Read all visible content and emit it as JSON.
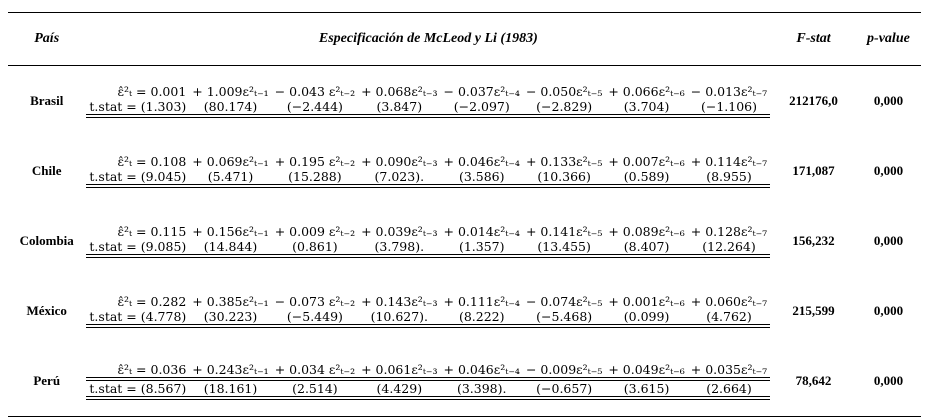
{
  "table": {
    "header": [
      "País",
      "Especificación de McLeod y Li (1983)",
      "F-stat",
      "p-value"
    ],
    "rows": [
      {
        "country": "Brasil",
        "equation": [
          "ε̂²ₜ = 0.001",
          "+ 1.009ε²ₜ₋₁",
          "− 0.043 ε²ₜ₋₂",
          "+ 0.068ε²ₜ₋₃",
          "− 0.037ε²ₜ₋₄",
          "− 0.050ε²ₜ₋₅",
          "+ 0.066ε²ₜ₋₆",
          "− 0.013ε²ₜ₋₇"
        ],
        "tstat": [
          "t.stat = (1.303)",
          "(80.174)",
          "(−2.444)",
          "(3.847)",
          "(−2.097)",
          "(−2.829)",
          "(3.704)",
          "(−1.106)"
        ],
        "fstat": "212176,0",
        "pvalue": "0,000"
      },
      {
        "country": "Chile",
        "equation": [
          "ε̂²ₜ = 0.108",
          "+ 0.069ε²ₜ₋₁",
          "+ 0.195 ε²ₜ₋₂",
          "+ 0.090ε²ₜ₋₃",
          "+ 0.046ε²ₜ₋₄",
          "+ 0.133ε²ₜ₋₅",
          "+ 0.007ε²ₜ₋₆",
          "+ 0.114ε²ₜ₋₇"
        ],
        "tstat": [
          "t.stat = (9.045)",
          "(5.471)",
          "(15.288)",
          "(7.023).",
          "(3.586)",
          "(10.366)",
          "(0.589)",
          "(8.955)"
        ],
        "fstat": "171,087",
        "pvalue": "0,000"
      },
      {
        "country": "Colombia",
        "equation": [
          "ε̂²ₜ = 0.115",
          "+ 0.156ε²ₜ₋₁",
          "+ 0.009 ε²ₜ₋₂",
          "+ 0.039ε²ₜ₋₃",
          "+ 0.014ε²ₜ₋₄",
          "+ 0.141ε²ₜ₋₅",
          "+ 0.089ε²ₜ₋₆",
          "+ 0.128ε²ₜ₋₇"
        ],
        "tstat": [
          "t.stat = (9.085)",
          "(14.844)",
          "(0.861)",
          "(3.798).",
          "(1.357)",
          "(13.455)",
          "(8.407)",
          "(12.264)"
        ],
        "fstat": "156,232",
        "pvalue": "0,000"
      },
      {
        "country": "México",
        "equation": [
          "ε̂²ₜ = 0.282",
          "+ 0.385ε²ₜ₋₁",
          "− 0.073 ε²ₜ₋₂",
          "+ 0.143ε²ₜ₋₃",
          "+ 0.111ε²ₜ₋₄",
          "− 0.074ε²ₜ₋₅",
          "+ 0.001ε²ₜ₋₆",
          "+ 0.060ε²ₜ₋₇"
        ],
        "tstat": [
          "t.stat = (4.778)",
          "(30.223)",
          "(−5.449)",
          "(10.627).",
          "(8.222)",
          "(−5.468)",
          "(0.099)",
          "(4.762)"
        ],
        "fstat": "215,599",
        "pvalue": "0,000"
      },
      {
        "country": "Perú",
        "equation": [
          "ε̂²ₜ = 0.036",
          "+ 0.243ε²ₜ₋₁",
          "+ 0.034 ε²ₜ₋₂",
          "+ 0.061ε²ₜ₋₃",
          "+ 0.046ε²ₜ₋₄",
          "− 0.009ε²ₜ₋₅",
          "+ 0.049ε²ₜ₋₆",
          "+ 0.035ε²ₜ₋₇"
        ],
        "tstat": [
          "t.stat = (8.567)",
          "(18.161)",
          "(2.514)",
          "(4.429)",
          "(3.398).",
          "(−0.657)",
          "(3.615)",
          "(2.664)"
        ],
        "fstat": "78,642",
        "pvalue": "0,000"
      }
    ]
  }
}
